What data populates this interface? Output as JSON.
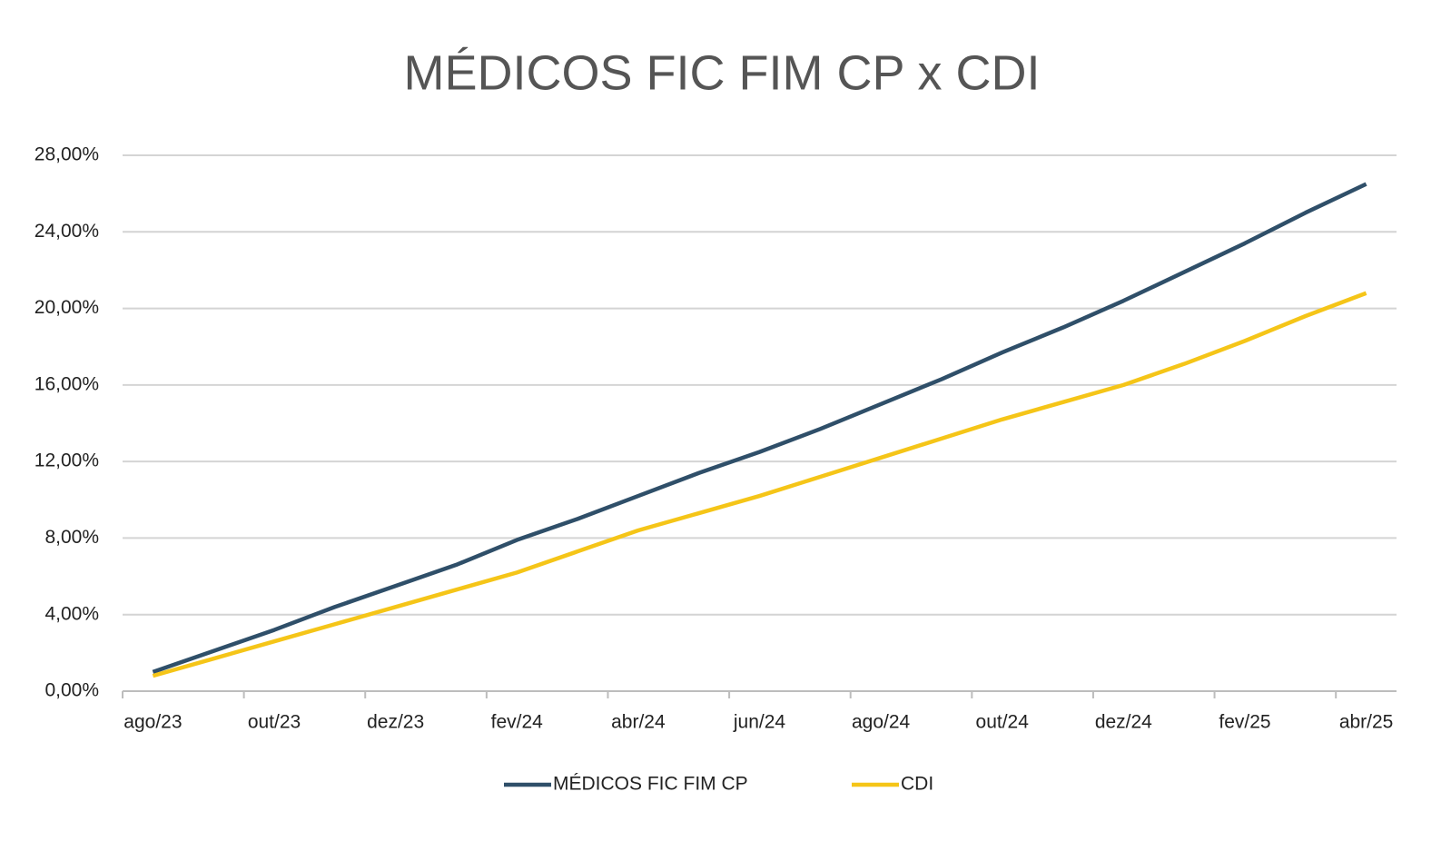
{
  "chart_data": {
    "type": "line",
    "title": "MÉDICOS FIC FIM CP x CDI",
    "categories": [
      "ago/23",
      null,
      "out/23",
      null,
      "dez/23",
      null,
      "fev/24",
      null,
      "abr/24",
      null,
      "jun/24",
      null,
      "ago/24",
      null,
      "out/24",
      null,
      "dez/24",
      null,
      "fev/25",
      null,
      "abr/25"
    ],
    "series": [
      {
        "name": "MÉDICOS FIC FIM CP",
        "color": "#2f4f69",
        "values": [
          1.0,
          2.1,
          3.2,
          4.4,
          5.5,
          6.6,
          7.9,
          9.0,
          10.2,
          11.4,
          12.5,
          13.7,
          15.0,
          16.3,
          17.7,
          19.0,
          20.4,
          21.9,
          23.4,
          25.0,
          26.5
        ]
      },
      {
        "name": "CDI",
        "color": "#f5c518",
        "values": [
          0.8,
          1.7,
          2.6,
          3.5,
          4.4,
          5.3,
          6.2,
          7.3,
          8.4,
          9.3,
          10.2,
          11.2,
          12.2,
          13.2,
          14.2,
          15.1,
          16.0,
          17.1,
          18.3,
          19.6,
          20.8
        ]
      }
    ],
    "ylim": [
      0,
      28
    ],
    "yticks": [
      {
        "value": 0,
        "label": "0,00%"
      },
      {
        "value": 4,
        "label": "4,00%"
      },
      {
        "value": 8,
        "label": "8,00%"
      },
      {
        "value": 12,
        "label": "12,00%"
      },
      {
        "value": 16,
        "label": "16,00%"
      },
      {
        "value": 20,
        "label": "20,00%"
      },
      {
        "value": 24,
        "label": "24,00%"
      },
      {
        "value": 28,
        "label": "28,00%"
      }
    ],
    "grid": true,
    "legend": "bottom"
  }
}
